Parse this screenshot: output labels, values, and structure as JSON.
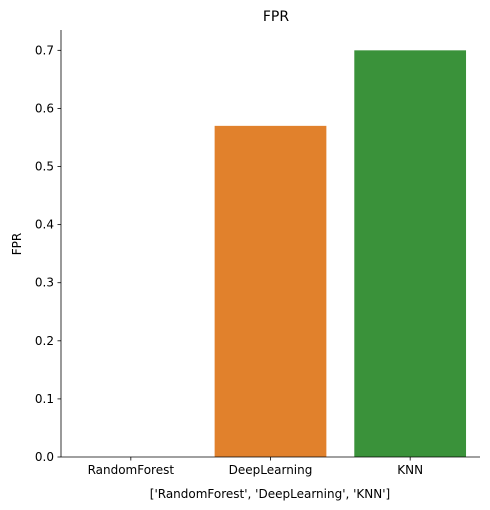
{
  "chart_data": {
    "type": "bar",
    "title": "FPR",
    "xlabel": "['RandomForest', 'DeepLearning', 'KNN']",
    "ylabel": "FPR",
    "categories": [
      "RandomForest",
      "DeepLearning",
      "KNN"
    ],
    "values": [
      0.0,
      0.57,
      0.7
    ],
    "colors": [
      "#1f77b4",
      "#e1812c",
      "#3a923a"
    ],
    "ylim": [
      0,
      0.735
    ],
    "yticks": [
      0.0,
      0.1,
      0.2,
      0.3,
      0.4,
      0.5,
      0.6,
      0.7
    ],
    "ytick_labels": [
      "0.0",
      "0.1",
      "0.2",
      "0.3",
      "0.4",
      "0.5",
      "0.6",
      "0.7"
    ],
    "grid": false,
    "spines": [
      "left",
      "bottom"
    ]
  }
}
